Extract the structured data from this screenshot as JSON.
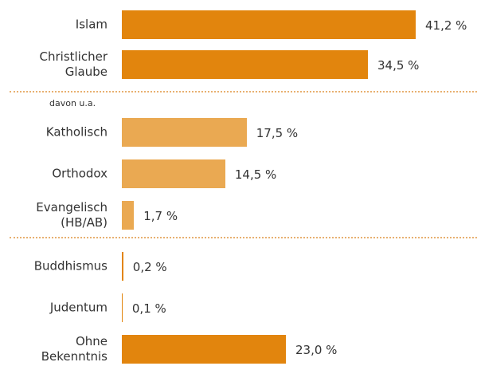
{
  "chart_data": {
    "type": "bar",
    "orientation": "horizontal",
    "categories": [
      "Islam",
      "Christlicher Glaube",
      "Katholisch",
      "Orthodox",
      "Evangelisch (HB/AB)",
      "Buddhismus",
      "Judentum",
      "Ohne Bekenntnis"
    ],
    "values": [
      41.2,
      34.5,
      17.5,
      14.5,
      1.7,
      0.2,
      0.1,
      23.0
    ],
    "value_labels": [
      "41,2 %",
      "34,5 %",
      "17,5 %",
      "14,5 %",
      "1,7 %",
      "0,2 %",
      "0,1 %",
      "23,0 %"
    ],
    "colors": [
      "#e2850d",
      "#e2850d",
      "#eaa952",
      "#eaa952",
      "#eaa952",
      "#e2850d",
      "#e2850d",
      "#e2850d"
    ],
    "xlim": [
      0,
      41.2
    ],
    "annotation": "davon u.a."
  }
}
